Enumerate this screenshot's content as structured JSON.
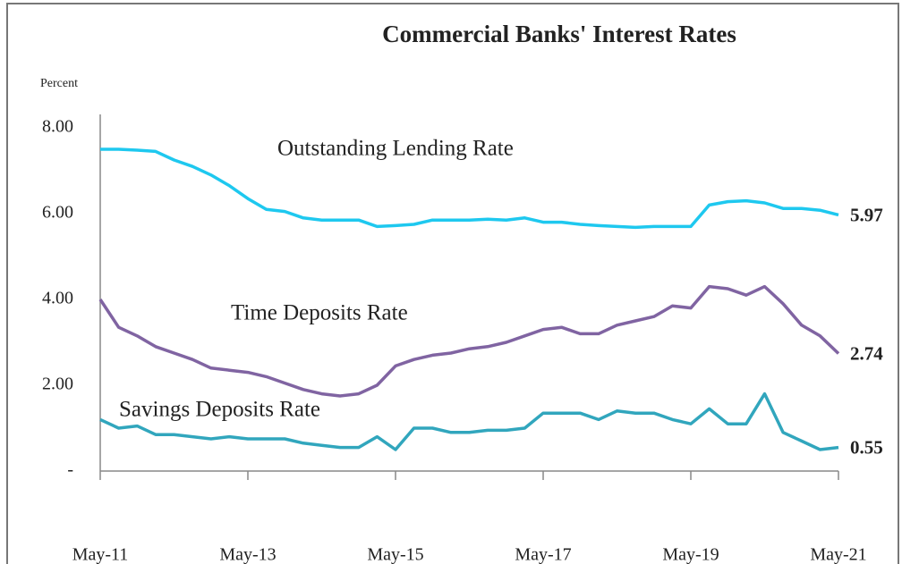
{
  "chart_data": {
    "type": "line",
    "title": "Commercial Banks' Interest Rates",
    "y_label": "Percent",
    "categories": [
      "May-11",
      null,
      null,
      null,
      null,
      null,
      null,
      null,
      "May-13",
      null,
      null,
      null,
      null,
      null,
      null,
      null,
      "May-15",
      null,
      null,
      null,
      null,
      null,
      null,
      null,
      "May-17",
      null,
      null,
      null,
      null,
      null,
      null,
      null,
      "May-19",
      null,
      null,
      null,
      null,
      null,
      null,
      null,
      "May-21"
    ],
    "ylim": [
      0,
      8
    ],
    "yticks": [
      {
        "value": 0,
        "label": "-"
      },
      {
        "value": 2,
        "label": "2.00"
      },
      {
        "value": 4,
        "label": "4.00"
      },
      {
        "value": 6,
        "label": "6.00"
      },
      {
        "value": 8,
        "label": "8.00"
      }
    ],
    "grid": false,
    "series": [
      {
        "name": "Outstanding Lending Rate",
        "color": "#1ec8ef",
        "values": [
          7.5,
          7.5,
          7.48,
          7.45,
          7.25,
          7.1,
          6.9,
          6.65,
          6.35,
          6.1,
          6.05,
          5.9,
          5.85,
          5.85,
          5.85,
          5.7,
          5.72,
          5.75,
          5.85,
          5.85,
          5.85,
          5.87,
          5.85,
          5.9,
          5.8,
          5.8,
          5.75,
          5.72,
          5.7,
          5.68,
          5.7,
          5.7,
          5.7,
          6.2,
          6.28,
          6.3,
          6.25,
          6.12,
          6.12,
          6.08,
          5.97
        ]
      },
      {
        "name": "Time Deposits Rate",
        "color": "#8064a2",
        "values": [
          4.0,
          3.35,
          3.15,
          2.9,
          2.75,
          2.6,
          2.4,
          2.35,
          2.3,
          2.2,
          2.05,
          1.9,
          1.8,
          1.75,
          1.8,
          2.0,
          2.45,
          2.6,
          2.7,
          2.75,
          2.85,
          2.9,
          3.0,
          3.15,
          3.3,
          3.35,
          3.2,
          3.2,
          3.4,
          3.5,
          3.6,
          3.85,
          3.8,
          4.3,
          4.25,
          4.1,
          4.3,
          3.9,
          3.4,
          3.15,
          2.74
        ]
      },
      {
        "name": "Savings Deposits  Rate",
        "color": "#31a6bd",
        "values": [
          1.2,
          1.0,
          1.05,
          0.85,
          0.85,
          0.8,
          0.75,
          0.8,
          0.75,
          0.75,
          0.75,
          0.65,
          0.6,
          0.55,
          0.55,
          0.8,
          0.5,
          1.0,
          1.0,
          0.9,
          0.9,
          0.95,
          0.95,
          1.0,
          1.35,
          1.35,
          1.35,
          1.2,
          1.4,
          1.35,
          1.35,
          1.2,
          1.1,
          1.45,
          1.1,
          1.1,
          1.8,
          0.9,
          0.7,
          0.5,
          0.55
        ]
      }
    ]
  }
}
